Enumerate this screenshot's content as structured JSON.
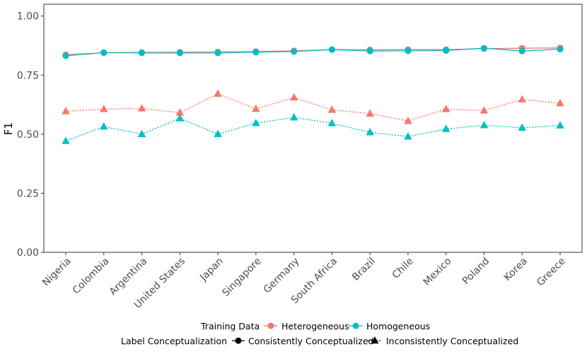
{
  "chart_data": {
    "type": "line",
    "title": "",
    "xlabel": "",
    "ylabel": "F1",
    "ylim": [
      0,
      1.05
    ],
    "yticks": [
      0.0,
      0.25,
      0.5,
      0.75,
      1.0
    ],
    "ytick_labels": [
      "0.00",
      "0.25",
      "0.50",
      "0.75",
      "1.00"
    ],
    "categories": [
      "Nigeria",
      "Colombia",
      "Argentina",
      "United States",
      "Japan",
      "Singapore",
      "Germany",
      "South Africa",
      "Brazil",
      "Chile",
      "Mexico",
      "Poland",
      "Korea",
      "Greece"
    ],
    "colors": {
      "Heterogeneous": "#F8766D",
      "Homogeneous": "#00BFC4"
    },
    "series": [
      {
        "name": "Heterogeneous",
        "conceptualization": "Consistently Conceptualized",
        "shape": "circle",
        "linestyle": "solid",
        "values": [
          0.836,
          0.845,
          0.846,
          0.847,
          0.848,
          0.85,
          0.853,
          0.858,
          0.857,
          0.858,
          0.858,
          0.862,
          0.864,
          0.865
        ]
      },
      {
        "name": "Homogeneous",
        "conceptualization": "Consistently Conceptualized",
        "shape": "circle",
        "linestyle": "solid",
        "values": [
          0.832,
          0.845,
          0.844,
          0.844,
          0.844,
          0.847,
          0.85,
          0.858,
          0.852,
          0.853,
          0.854,
          0.864,
          0.852,
          0.86
        ]
      },
      {
        "name": "Heterogeneous",
        "conceptualization": "Inconsistently Conceptualized",
        "shape": "triangle",
        "linestyle": "dotted",
        "values": [
          0.597,
          0.606,
          0.609,
          0.591,
          0.671,
          0.607,
          0.655,
          0.603,
          0.587,
          0.556,
          0.606,
          0.6,
          0.647,
          0.631
        ]
      },
      {
        "name": "Homogeneous",
        "conceptualization": "Inconsistently Conceptualized",
        "shape": "triangle",
        "linestyle": "dotted",
        "values": [
          0.471,
          0.532,
          0.5,
          0.567,
          0.5,
          0.547,
          0.571,
          0.546,
          0.508,
          0.49,
          0.522,
          0.538,
          0.527,
          0.537
        ]
      }
    ],
    "legend": {
      "training_title": "Training Data",
      "training_items": [
        "Heterogeneous",
        "Homogeneous"
      ],
      "concept_title": "Label Conceptualization",
      "concept_items": [
        "Consistently Conceptualized",
        "Inconsistently Conceptualized"
      ],
      "placement": "bottom"
    },
    "grid": false
  }
}
